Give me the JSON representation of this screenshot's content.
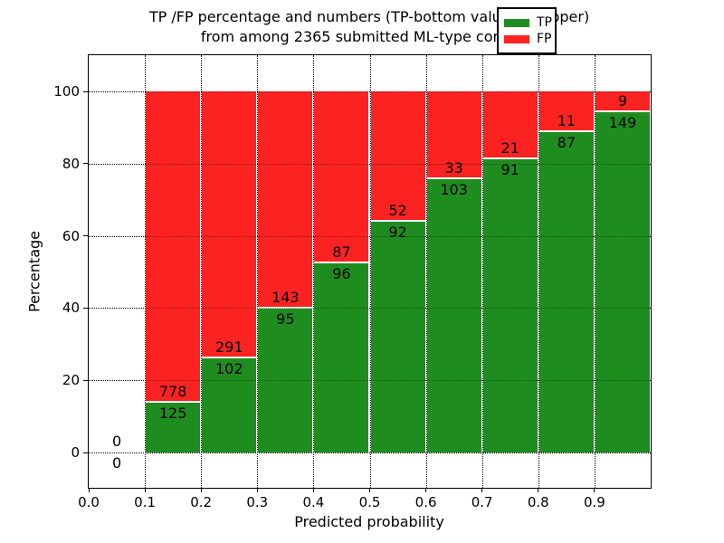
{
  "figure": {
    "title_line1": "TP /FP percentage and numbers (TP-bottom value, FP-upper)",
    "title_line2": "from among 2365 submitted ML-type contacts",
    "x_axis_label": "Predicted probability",
    "y_axis_label": "Percentage"
  },
  "legend": {
    "position": "upper right",
    "items": [
      {
        "label": "TP",
        "color": "#1f8c1f"
      },
      {
        "label": "FP",
        "color": "#fb2222"
      }
    ]
  },
  "chart_data": {
    "type": "bar",
    "stacked": true,
    "normalized_to_percent": true,
    "title": "TP /FP percentage and numbers (TP-bottom value, FP-upper) from among 2365 submitted ML-type contacts",
    "xlabel": "Predicted probability",
    "ylabel": "Percentage",
    "total_contacts": 2365,
    "grid": true,
    "xlim": [
      0.0,
      1.0
    ],
    "ylim": [
      -10,
      110
    ],
    "bins": [
      [
        0.0,
        0.1
      ],
      [
        0.1,
        0.2
      ],
      [
        0.2,
        0.3
      ],
      [
        0.3,
        0.4
      ],
      [
        0.4,
        0.5
      ],
      [
        0.5,
        0.6
      ],
      [
        0.6,
        0.7
      ],
      [
        0.7,
        0.8
      ],
      [
        0.8,
        0.9
      ],
      [
        0.9,
        1.0
      ]
    ],
    "x_tick_values": [
      0.0,
      0.1,
      0.2,
      0.3,
      0.4,
      0.5,
      0.6,
      0.7,
      0.8,
      0.9
    ],
    "x_tick_labels": [
      "0.0",
      "0.1",
      "0.2",
      "0.3",
      "0.4",
      "0.5",
      "0.6",
      "0.7",
      "0.8",
      "0.9"
    ],
    "y_tick_values": [
      0,
      20,
      40,
      60,
      80,
      100
    ],
    "y_tick_labels": [
      "0",
      "20",
      "40",
      "60",
      "80",
      "100"
    ],
    "series": [
      {
        "name": "TP",
        "color": "#1f8c1f",
        "counts": [
          0,
          125,
          102,
          95,
          96,
          92,
          103,
          91,
          87,
          149
        ]
      },
      {
        "name": "FP",
        "color": "#fb2222",
        "counts": [
          0,
          778,
          291,
          143,
          87,
          52,
          33,
          21,
          11,
          9
        ]
      }
    ],
    "tp_percent_of_bin": [
      0.0,
      13.8,
      26.0,
      39.9,
      52.5,
      63.9,
      75.7,
      81.2,
      88.8,
      94.3
    ],
    "fp_percent_of_bin": [
      0.0,
      86.2,
      74.0,
      60.1,
      47.5,
      36.1,
      24.3,
      18.8,
      11.2,
      5.7
    ]
  }
}
